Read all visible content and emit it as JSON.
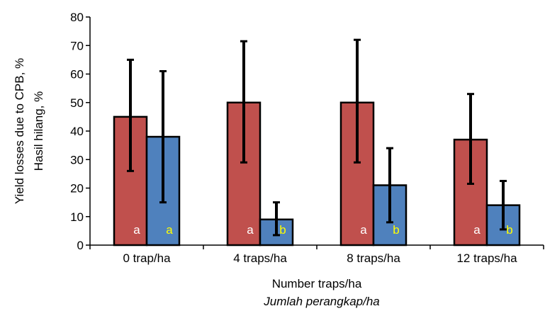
{
  "chart_data": {
    "type": "bar",
    "categories": [
      "0 trap/ha",
      "4 traps/ha",
      "8 traps/ha",
      "12 traps/ha"
    ],
    "series": [
      {
        "color": "#c0504d",
        "values": [
          45,
          50,
          50,
          37
        ],
        "error_low": [
          26,
          29,
          29,
          21.5
        ],
        "error_high": [
          65,
          71.5,
          72,
          53
        ],
        "letters": [
          "a",
          "a",
          "a",
          "a"
        ],
        "letter_color": "#ffffff"
      },
      {
        "color": "#4f81bd",
        "values": [
          38,
          9,
          21,
          14
        ],
        "error_low": [
          15,
          3.5,
          8,
          5.5
        ],
        "error_high": [
          61,
          15,
          34,
          22.5
        ],
        "letters": [
          "a",
          "b",
          "b",
          "b"
        ],
        "letter_color": "#ffff00"
      }
    ],
    "ylabel_line1": "Yield losses due to CPB, %",
    "ylabel_line2": "Hasil hilang, %",
    "xlabel_line1": "Number traps/ha",
    "xlabel_line2": "Jumlah perangkap/ha",
    "ylim": [
      0,
      80
    ],
    "yticks": [
      "0",
      "10",
      "20",
      "30",
      "40",
      "50",
      "60",
      "70",
      "80"
    ],
    "grid": false,
    "legend": "none"
  }
}
